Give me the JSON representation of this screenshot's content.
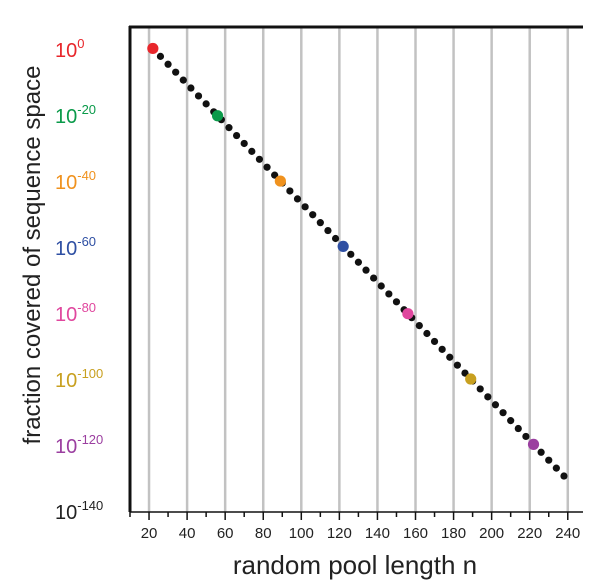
{
  "chart_data": {
    "type": "scatter",
    "title": "",
    "xlabel": "random pool length n",
    "ylabel": "fraction covered of sequence space",
    "xlim": [
      10,
      248
    ],
    "ylim": [
      -140,
      7
    ],
    "y_scale": "log10",
    "grid": {
      "vertical": true,
      "horizontal": false
    },
    "x_ticks": [
      {
        "value": 20,
        "label": "20"
      },
      {
        "value": 40,
        "label": "40"
      },
      {
        "value": 60,
        "label": "60"
      },
      {
        "value": 80,
        "label": "80"
      },
      {
        "value": 100,
        "label": "100"
      },
      {
        "value": 120,
        "label": "120"
      },
      {
        "value": 140,
        "label": "140"
      },
      {
        "value": 160,
        "label": "160"
      },
      {
        "value": 180,
        "label": "180"
      },
      {
        "value": 200,
        "label": "200"
      },
      {
        "value": 220,
        "label": "220"
      },
      {
        "value": 240,
        "label": "240"
      }
    ],
    "y_ticks": [
      {
        "exponent": 0,
        "base": "10",
        "sup": "0",
        "color": "#e8262b"
      },
      {
        "exponent": -20,
        "base": "10",
        "sup": "-20",
        "color": "#0a9a4a"
      },
      {
        "exponent": -40,
        "base": "10",
        "sup": "-40",
        "color": "#f0921e"
      },
      {
        "exponent": -60,
        "base": "10",
        "sup": "-60",
        "color": "#2e4fa3"
      },
      {
        "exponent": -80,
        "base": "10",
        "sup": "-80",
        "color": "#e0479e"
      },
      {
        "exponent": -100,
        "base": "10",
        "sup": "-100",
        "color": "#c8a020"
      },
      {
        "exponent": -120,
        "base": "10",
        "sup": "-120",
        "color": "#9b3fa0"
      },
      {
        "exponent": -140,
        "base": "10",
        "sup": "-140",
        "color": "#222222"
      }
    ],
    "series": [
      {
        "marker_color": "#111111",
        "x": [
          22,
          26,
          30,
          34,
          38,
          42,
          46,
          50,
          54,
          58,
          62,
          66,
          70,
          74,
          78,
          82,
          86,
          90,
          94,
          98,
          102,
          106,
          110,
          114,
          118,
          122,
          126,
          130,
          134,
          138,
          142,
          146,
          150,
          154,
          158,
          162,
          166,
          170,
          174,
          178,
          182,
          186,
          190,
          194,
          198,
          202,
          206,
          210,
          214,
          218,
          222,
          226,
          230,
          234,
          238
        ],
        "y_exponent": [
          0.5,
          -1.9,
          -4.3,
          -6.7,
          -9.1,
          -11.5,
          -13.9,
          -16.3,
          -18.7,
          -21.1,
          -23.5,
          -25.9,
          -28.3,
          -30.7,
          -33.1,
          -35.5,
          -37.9,
          -40.3,
          -42.7,
          -45.1,
          -47.5,
          -49.9,
          -52.3,
          -54.7,
          -57.1,
          -59.5,
          -61.9,
          -64.3,
          -66.7,
          -69.1,
          -71.5,
          -73.9,
          -76.3,
          -78.7,
          -81.1,
          -83.5,
          -85.9,
          -88.3,
          -90.7,
          -93.1,
          -95.5,
          -97.9,
          -100.3,
          -102.7,
          -105.1,
          -107.5,
          -109.9,
          -112.3,
          -114.7,
          -117.1,
          -119.5,
          -121.9,
          -124.3,
          -126.7,
          -129.1
        ]
      }
    ],
    "highlight_points": [
      {
        "x": 22,
        "y_exponent": 0.5,
        "color": "#e8262b"
      },
      {
        "x": 56,
        "y_exponent": -19.9,
        "color": "#0a9a4a"
      },
      {
        "x": 89,
        "y_exponent": -39.7,
        "color": "#f0921e"
      },
      {
        "x": 122,
        "y_exponent": -59.5,
        "color": "#2e4fa3"
      },
      {
        "x": 156,
        "y_exponent": -79.9,
        "color": "#e0479e"
      },
      {
        "x": 189,
        "y_exponent": -99.7,
        "color": "#c8a020"
      },
      {
        "x": 222,
        "y_exponent": -119.5,
        "color": "#9b3fa0"
      }
    ]
  }
}
